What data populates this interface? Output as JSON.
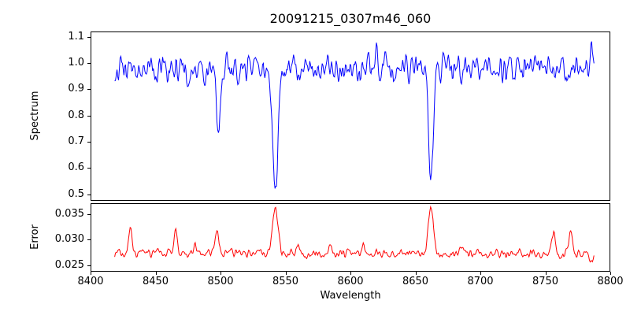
{
  "title": "20091215_0307m46_060",
  "xlabel": "Wavelength",
  "axes": {
    "xlim": [
      8400,
      8800
    ],
    "xticks": [
      {
        "v": 8400,
        "label": "8400"
      },
      {
        "v": 8450,
        "label": "8450"
      },
      {
        "v": 8500,
        "label": "8500"
      },
      {
        "v": 8550,
        "label": "8550"
      },
      {
        "v": 8600,
        "label": "8600"
      },
      {
        "v": 8650,
        "label": "8650"
      },
      {
        "v": 8700,
        "label": "8700"
      },
      {
        "v": 8750,
        "label": "8750"
      },
      {
        "v": 8800,
        "label": "8800"
      }
    ]
  },
  "panels": {
    "spectrum": {
      "ylabel": "Spectrum",
      "ylim": [
        0.475,
        1.12
      ],
      "yticks": [
        {
          "v": 1.1,
          "label": "1.1"
        },
        {
          "v": 1.0,
          "label": "1.0"
        },
        {
          "v": 0.9,
          "label": "0.9"
        },
        {
          "v": 0.8,
          "label": "0.8"
        },
        {
          "v": 0.7,
          "label": "0.7"
        },
        {
          "v": 0.6,
          "label": "0.6"
        },
        {
          "v": 0.5,
          "label": "0.5"
        }
      ]
    },
    "error": {
      "ylabel": "Error",
      "ylim": [
        0.0237,
        0.0372
      ],
      "yticks": [
        {
          "v": 0.035,
          "label": "0.035"
        },
        {
          "v": 0.03,
          "label": "0.030"
        },
        {
          "v": 0.025,
          "label": "0.025"
        }
      ]
    }
  },
  "chart_data": {
    "type": "line",
    "title": "20091215_0307m46_060",
    "xlabel": "Wavelength",
    "legend": "none",
    "grid": false,
    "x_range": [
      8418,
      8788
    ],
    "n_points": 620,
    "series": [
      {
        "name": "spectrum",
        "panel": "spectrum",
        "color": "#0000ff",
        "seed": 20091215,
        "baseline": 0.978,
        "noise_amplitude": 0.075,
        "features": [
          {
            "center": 8498.0,
            "amplitude": -0.27,
            "width": 1.4
          },
          {
            "center": 8542.0,
            "amplitude": -0.485,
            "width": 2.1
          },
          {
            "center": 8662.0,
            "amplitude": -0.405,
            "width": 1.8
          },
          {
            "center": 8620.0,
            "amplitude": 0.05,
            "width": 0.9
          },
          {
            "center": 8786.0,
            "amplitude": 0.09,
            "width": 1.5
          }
        ],
        "absorption_line_minima": {
          "8498": 0.71,
          "8542": 0.5,
          "8662": 0.58
        },
        "continuum_level": 1.0
      },
      {
        "name": "error",
        "panel": "error",
        "color": "#ff0000",
        "seed": 307,
        "baseline": 0.0272,
        "noise_amplitude": 0.0012,
        "features": [
          {
            "center": 8430,
            "amplitude": 0.0048,
            "width": 1.2
          },
          {
            "center": 8465,
            "amplitude": 0.0046,
            "width": 1.2
          },
          {
            "center": 8480,
            "amplitude": 0.0016,
            "width": 1.0
          },
          {
            "center": 8497,
            "amplitude": 0.0038,
            "width": 1.5
          },
          {
            "center": 8508,
            "amplitude": 0.0016,
            "width": 1.0
          },
          {
            "center": 8542,
            "amplitude": 0.0092,
            "width": 2.0
          },
          {
            "center": 8560,
            "amplitude": 0.0014,
            "width": 1.2
          },
          {
            "center": 8585,
            "amplitude": 0.0016,
            "width": 1.4
          },
          {
            "center": 8610,
            "amplitude": 0.0012,
            "width": 1.2
          },
          {
            "center": 8662,
            "amplitude": 0.0098,
            "width": 1.8
          },
          {
            "center": 8685,
            "amplitude": 0.0012,
            "width": 1.0
          },
          {
            "center": 8757,
            "amplitude": 0.004,
            "width": 1.4
          },
          {
            "center": 8770,
            "amplitude": 0.0048,
            "width": 1.2
          },
          {
            "center": 8786,
            "amplitude": -0.0014,
            "width": 1.5
          }
        ],
        "peak_maxima": {
          "8542": 0.037,
          "8662": 0.0375
        },
        "baseline_level": 0.027
      }
    ]
  }
}
